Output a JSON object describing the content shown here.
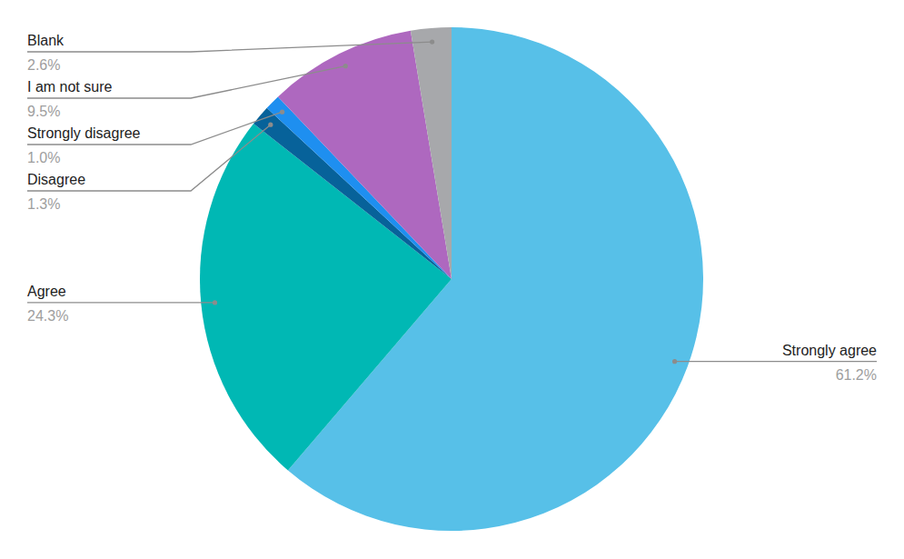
{
  "chart_data": {
    "type": "pie",
    "categories": [
      "Strongly agree",
      "Agree",
      "Disagree",
      "Strongly disagree",
      "I am not sure",
      "Blank"
    ],
    "values": [
      61.2,
      24.3,
      1.3,
      1.0,
      9.5,
      2.6
    ],
    "value_labels": [
      "61.2%",
      "24.3%",
      "1.3%",
      "1.0%",
      "9.5%",
      "2.6%"
    ],
    "colors": [
      "#57c0e8",
      "#00b8b4",
      "#07629a",
      "#1e8ff0",
      "#ae68bf",
      "#a7a8ab"
    ],
    "data_labels": true
  }
}
